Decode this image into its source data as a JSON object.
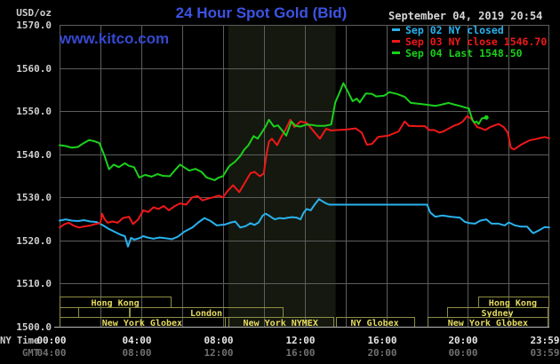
{
  "header": {
    "title": "24 Hour Spot Gold (Bid)",
    "watermark": "www.kitco.com",
    "datetime": "September 04, 2019 20:54"
  },
  "colors": {
    "background": "#000000",
    "title_blue": "#3c53e4",
    "watermark_blue": "#3549cf",
    "grid": "#5d5d5d",
    "axis": "#b8b8b8",
    "date_text": "#d6d6d6",
    "y_label": "#cfcfcf",
    "x_label_ny": "#e6e6e6",
    "x_label_gmt": "#707070",
    "session_border": "#8e8e44",
    "session_text": "#e6dc5f",
    "band": "#15180e"
  },
  "legend": {
    "items": [
      {
        "label": "Sep 02 NY closed",
        "color": "#29b2ee"
      },
      {
        "label": "Sep 03 NY close 1546.70",
        "color": "#f01818"
      },
      {
        "label": "Sep 04 Last 1548.50",
        "color": "#1ad11a"
      }
    ]
  },
  "axes": {
    "unit_label": "USD/oz",
    "ny_time_label": "NY Time",
    "gmt_label": "GMT",
    "y_ticks": [
      1570.0,
      1560.0,
      1550.0,
      1540.0,
      1530.0,
      1520.0,
      1510.0,
      1500.0
    ],
    "x_hours": [
      0,
      4,
      8,
      12,
      16,
      20,
      23.983
    ],
    "x_ny": [
      "00:00",
      "04:00",
      "08:00",
      "12:00",
      "16:00",
      "20:00",
      "23:59"
    ],
    "x_gmt": [
      "04:00",
      "08:00",
      "12:00",
      "16:00",
      "20:00",
      "00:00",
      "03:59"
    ]
  },
  "band": {
    "start_h": 8.26,
    "end_h": 13.52,
    "color": "#15180e"
  },
  "sessions": [
    {
      "row": 0,
      "label": "Hong Kong",
      "start_h": 0,
      "end_h": 5.45
    },
    {
      "row": 0,
      "label": "Hong Kong",
      "start_h": 20.48,
      "end_h": 23.91
    },
    {
      "row": 1,
      "label": "",
      "start_h": 0,
      "end_h": 0.93
    },
    {
      "row": 1,
      "label": "",
      "start_h": 0.93,
      "end_h": 3.43
    },
    {
      "row": 1,
      "label": "London",
      "start_h": 3.43,
      "end_h": 10.93
    },
    {
      "row": 1,
      "label": "Sydney",
      "start_h": 18.97,
      "end_h": 23.91
    },
    {
      "row": 2,
      "label": "New York Globex",
      "start_h": 0,
      "end_h": 8.09
    },
    {
      "row": 2,
      "label": "New York NYMEX",
      "start_h": 8.26,
      "end_h": 13.39
    },
    {
      "row": 2,
      "label": "NY Globex",
      "start_h": 13.52,
      "end_h": 17.35
    },
    {
      "row": 2,
      "label": "New York Globex",
      "start_h": 18.04,
      "end_h": 23.91
    }
  ],
  "chart_data": {
    "type": "line",
    "title": "24 Hour Spot Gold (Bid)",
    "ylabel": "USD/oz",
    "xlabel": "NY Time (hours)",
    "ylim": [
      1500,
      1570
    ],
    "xlim_hours": [
      0,
      23.983
    ],
    "grid": true,
    "legend_position": "top-right",
    "series": [
      {
        "name": "Sep 02 NY closed",
        "key": "sep02",
        "color": "#29b2ee",
        "end_marker": false,
        "points": [
          [
            0,
            1524.6
          ],
          [
            0.3,
            1524.9
          ],
          [
            0.6,
            1524.6
          ],
          [
            0.9,
            1524.5
          ],
          [
            1.2,
            1524.7
          ],
          [
            1.5,
            1524.4
          ],
          [
            1.8,
            1524.3
          ],
          [
            2.1,
            1523.6
          ],
          [
            2.4,
            1522.7
          ],
          [
            2.7,
            1522.0
          ],
          [
            3.0,
            1521.3
          ],
          [
            3.2,
            1521.0
          ],
          [
            3.35,
            1518.6
          ],
          [
            3.5,
            1520.6
          ],
          [
            3.65,
            1520.2
          ],
          [
            3.9,
            1520.5
          ],
          [
            4.1,
            1521.0
          ],
          [
            4.3,
            1520.7
          ],
          [
            4.6,
            1520.4
          ],
          [
            4.9,
            1520.7
          ],
          [
            5.2,
            1520.5
          ],
          [
            5.5,
            1520.3
          ],
          [
            5.8,
            1520.9
          ],
          [
            6.1,
            1522.0
          ],
          [
            6.5,
            1523.0
          ],
          [
            6.8,
            1524.2
          ],
          [
            7.1,
            1525.2
          ],
          [
            7.4,
            1524.5
          ],
          [
            7.7,
            1523.5
          ],
          [
            8.1,
            1523.7
          ],
          [
            8.35,
            1524.1
          ],
          [
            8.6,
            1524.4
          ],
          [
            8.85,
            1523.0
          ],
          [
            9.1,
            1523.3
          ],
          [
            9.35,
            1524.0
          ],
          [
            9.55,
            1523.6
          ],
          [
            9.75,
            1524.2
          ],
          [
            9.95,
            1525.8
          ],
          [
            10.1,
            1526.2
          ],
          [
            10.25,
            1525.8
          ],
          [
            10.4,
            1525.3
          ],
          [
            10.55,
            1524.9
          ],
          [
            10.75,
            1525.2
          ],
          [
            11.0,
            1525.1
          ],
          [
            11.2,
            1525.3
          ],
          [
            11.4,
            1525.4
          ],
          [
            11.6,
            1525.3
          ],
          [
            11.8,
            1524.9
          ],
          [
            11.95,
            1526.4
          ],
          [
            12.1,
            1527.3
          ],
          [
            12.3,
            1527.0
          ],
          [
            12.5,
            1528.4
          ],
          [
            12.7,
            1529.6
          ],
          [
            12.9,
            1529.0
          ],
          [
            13.05,
            1528.6
          ],
          [
            13.2,
            1528.3
          ],
          [
            18.0,
            1528.3
          ],
          [
            18.15,
            1526.5
          ],
          [
            18.4,
            1525.5
          ],
          [
            18.75,
            1525.8
          ],
          [
            19.15,
            1525.5
          ],
          [
            19.6,
            1525.3
          ],
          [
            19.85,
            1524.3
          ],
          [
            20.1,
            1524.0
          ],
          [
            20.35,
            1523.9
          ],
          [
            20.6,
            1524.6
          ],
          [
            20.9,
            1524.9
          ],
          [
            21.15,
            1523.9
          ],
          [
            21.5,
            1523.9
          ],
          [
            21.8,
            1523.5
          ],
          [
            22.0,
            1524.2
          ],
          [
            22.3,
            1523.5
          ],
          [
            22.6,
            1523.2
          ],
          [
            22.9,
            1523.2
          ],
          [
            23.1,
            1522.1
          ],
          [
            23.2,
            1521.7
          ],
          [
            23.5,
            1522.4
          ],
          [
            23.75,
            1523.1
          ],
          [
            23.98,
            1523.0
          ]
        ]
      },
      {
        "name": "Sep 03 NY close 1546.70",
        "key": "sep03",
        "color": "#f01818",
        "end_marker": false,
        "points": [
          [
            0,
            1523.0
          ],
          [
            0.25,
            1523.8
          ],
          [
            0.45,
            1524.1
          ],
          [
            0.7,
            1523.4
          ],
          [
            0.95,
            1523.0
          ],
          [
            1.15,
            1523.2
          ],
          [
            1.45,
            1523.4
          ],
          [
            1.75,
            1523.8
          ],
          [
            2.0,
            1524.0
          ],
          [
            2.08,
            1526.2
          ],
          [
            2.2,
            1525.0
          ],
          [
            2.35,
            1524.1
          ],
          [
            2.6,
            1524.4
          ],
          [
            2.85,
            1524.1
          ],
          [
            3.1,
            1525.2
          ],
          [
            3.4,
            1525.5
          ],
          [
            3.6,
            1523.8
          ],
          [
            3.85,
            1524.9
          ],
          [
            4.1,
            1527.0
          ],
          [
            4.35,
            1526.6
          ],
          [
            4.6,
            1527.7
          ],
          [
            4.85,
            1527.3
          ],
          [
            5.1,
            1528.0
          ],
          [
            5.35,
            1527.0
          ],
          [
            5.65,
            1528.0
          ],
          [
            5.9,
            1528.6
          ],
          [
            6.2,
            1528.3
          ],
          [
            6.5,
            1530.0
          ],
          [
            6.75,
            1530.3
          ],
          [
            7.0,
            1529.3
          ],
          [
            7.2,
            1529.6
          ],
          [
            7.5,
            1530.0
          ],
          [
            7.8,
            1530.4
          ],
          [
            8.0,
            1530.0
          ],
          [
            8.25,
            1531.6
          ],
          [
            8.5,
            1532.8
          ],
          [
            8.8,
            1531.2
          ],
          [
            9.1,
            1533.6
          ],
          [
            9.35,
            1535.6
          ],
          [
            9.55,
            1535.9
          ],
          [
            9.8,
            1534.9
          ],
          [
            10.0,
            1535.5
          ],
          [
            10.12,
            1539.5
          ],
          [
            10.25,
            1542.9
          ],
          [
            10.4,
            1543.6
          ],
          [
            10.65,
            1542.1
          ],
          [
            10.9,
            1544.4
          ],
          [
            11.1,
            1546.0
          ],
          [
            11.3,
            1548.0
          ],
          [
            11.5,
            1546.3
          ],
          [
            11.8,
            1547.6
          ],
          [
            12.1,
            1547.3
          ],
          [
            12.45,
            1545.3
          ],
          [
            12.75,
            1543.6
          ],
          [
            13.05,
            1545.9
          ],
          [
            13.3,
            1545.5
          ],
          [
            13.55,
            1545.6
          ],
          [
            14.0,
            1545.7
          ],
          [
            14.5,
            1546.0
          ],
          [
            14.8,
            1545.0
          ],
          [
            15.05,
            1542.2
          ],
          [
            15.3,
            1542.4
          ],
          [
            15.6,
            1544.0
          ],
          [
            16.1,
            1544.3
          ],
          [
            16.6,
            1545.3
          ],
          [
            16.9,
            1547.6
          ],
          [
            17.1,
            1546.6
          ],
          [
            17.5,
            1546.5
          ],
          [
            17.9,
            1546.5
          ],
          [
            18.1,
            1545.6
          ],
          [
            18.35,
            1545.6
          ],
          [
            18.6,
            1545.0
          ],
          [
            18.8,
            1545.3
          ],
          [
            19.3,
            1546.6
          ],
          [
            19.55,
            1547.0
          ],
          [
            19.75,
            1547.6
          ],
          [
            19.95,
            1548.8
          ],
          [
            20.15,
            1548.3
          ],
          [
            20.45,
            1546.3
          ],
          [
            20.65,
            1546.0
          ],
          [
            20.85,
            1545.6
          ],
          [
            21.05,
            1546.2
          ],
          [
            21.25,
            1546.6
          ],
          [
            21.5,
            1547.0
          ],
          [
            21.75,
            1546.3
          ],
          [
            21.95,
            1545.0
          ],
          [
            22.1,
            1541.5
          ],
          [
            22.25,
            1541.1
          ],
          [
            22.6,
            1542.2
          ],
          [
            23.0,
            1543.2
          ],
          [
            23.4,
            1543.6
          ],
          [
            23.75,
            1544.0
          ],
          [
            23.98,
            1543.7
          ]
        ]
      },
      {
        "name": "Sep 04 Last 1548.50",
        "key": "sep04",
        "color": "#1ad11a",
        "end_marker": true,
        "points": [
          [
            0,
            1542.1
          ],
          [
            0.3,
            1541.9
          ],
          [
            0.6,
            1541.5
          ],
          [
            0.9,
            1541.7
          ],
          [
            1.15,
            1542.5
          ],
          [
            1.45,
            1543.3
          ],
          [
            1.7,
            1543.0
          ],
          [
            1.95,
            1542.6
          ],
          [
            2.2,
            1539.7
          ],
          [
            2.42,
            1536.5
          ],
          [
            2.65,
            1537.6
          ],
          [
            2.9,
            1537.0
          ],
          [
            3.2,
            1537.9
          ],
          [
            3.4,
            1537.3
          ],
          [
            3.65,
            1537.0
          ],
          [
            3.9,
            1534.6
          ],
          [
            4.2,
            1535.2
          ],
          [
            4.5,
            1534.8
          ],
          [
            4.8,
            1535.4
          ],
          [
            5.05,
            1535.0
          ],
          [
            5.4,
            1534.9
          ],
          [
            5.65,
            1536.3
          ],
          [
            5.9,
            1537.6
          ],
          [
            6.35,
            1536.2
          ],
          [
            6.65,
            1536.6
          ],
          [
            6.95,
            1535.9
          ],
          [
            7.2,
            1534.6
          ],
          [
            7.6,
            1534.0
          ],
          [
            7.8,
            1534.6
          ],
          [
            8.0,
            1534.9
          ],
          [
            8.3,
            1537.2
          ],
          [
            8.6,
            1538.3
          ],
          [
            8.85,
            1539.6
          ],
          [
            9.05,
            1541.1
          ],
          [
            9.25,
            1542.1
          ],
          [
            9.5,
            1544.2
          ],
          [
            9.7,
            1543.6
          ],
          [
            9.9,
            1545.0
          ],
          [
            10.1,
            1546.5
          ],
          [
            10.25,
            1548.0
          ],
          [
            10.5,
            1546.4
          ],
          [
            10.7,
            1546.7
          ],
          [
            10.9,
            1545.5
          ],
          [
            11.1,
            1544.3
          ],
          [
            11.35,
            1547.6
          ],
          [
            11.55,
            1546.6
          ],
          [
            11.8,
            1546.4
          ],
          [
            12.1,
            1546.9
          ],
          [
            12.35,
            1546.8
          ],
          [
            12.6,
            1546.6
          ],
          [
            13.0,
            1546.6
          ],
          [
            13.3,
            1546.9
          ],
          [
            13.5,
            1552.0
          ],
          [
            13.7,
            1554.2
          ],
          [
            13.9,
            1556.5
          ],
          [
            14.1,
            1554.7
          ],
          [
            14.35,
            1552.3
          ],
          [
            14.55,
            1552.9
          ],
          [
            14.7,
            1552.0
          ],
          [
            15.0,
            1554.1
          ],
          [
            15.3,
            1554.0
          ],
          [
            15.5,
            1553.4
          ],
          [
            15.9,
            1553.6
          ],
          [
            16.15,
            1554.4
          ],
          [
            16.5,
            1554.0
          ],
          [
            16.9,
            1553.3
          ],
          [
            17.2,
            1551.9
          ],
          [
            17.6,
            1551.7
          ],
          [
            17.95,
            1551.5
          ],
          [
            18.4,
            1551.2
          ],
          [
            18.7,
            1551.5
          ],
          [
            19.05,
            1551.9
          ],
          [
            19.35,
            1551.5
          ],
          [
            19.6,
            1551.2
          ],
          [
            19.9,
            1550.8
          ],
          [
            20.05,
            1550.6
          ],
          [
            20.12,
            1549.4
          ],
          [
            20.22,
            1548.0
          ],
          [
            20.32,
            1547.3
          ],
          [
            20.42,
            1547.6
          ],
          [
            20.52,
            1547.0
          ],
          [
            20.68,
            1548.3
          ],
          [
            20.9,
            1548.5
          ]
        ]
      }
    ]
  }
}
